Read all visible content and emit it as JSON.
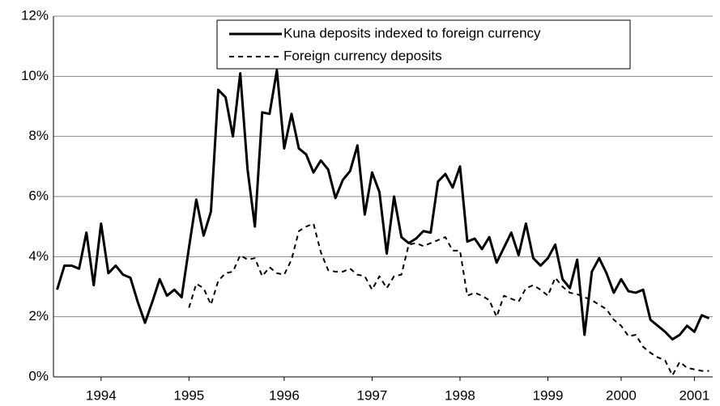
{
  "chart_data": {
    "type": "line",
    "categories": [
      null,
      null,
      null,
      null,
      null,
      null,
      "1994",
      null,
      null,
      null,
      null,
      null,
      null,
      null,
      null,
      null,
      null,
      null,
      "1995",
      null,
      null,
      null,
      null,
      null,
      null,
      null,
      null,
      null,
      null,
      null,
      null,
      "1996",
      null,
      null,
      null,
      null,
      null,
      null,
      null,
      null,
      null,
      null,
      null,
      "1997",
      null,
      null,
      null,
      null,
      null,
      null,
      null,
      null,
      null,
      null,
      null,
      "1998",
      null,
      null,
      null,
      null,
      null,
      null,
      null,
      null,
      null,
      null,
      null,
      "1999",
      null,
      null,
      null,
      null,
      null,
      null,
      null,
      null,
      null,
      "2000",
      null,
      null,
      null,
      null,
      null,
      null,
      null,
      null,
      null,
      "2001",
      null,
      null
    ],
    "series": [
      {
        "name": "Kuna deposits indexed to foreign currency",
        "color": "#000000",
        "linestyle": "solid",
        "values": [
          2.9,
          3.7,
          3.7,
          3.6,
          4.8,
          3.05,
          5.1,
          3.45,
          3.7,
          3.4,
          3.3,
          2.5,
          1.8,
          2.5,
          3.25,
          2.7,
          2.9,
          2.65,
          4.3,
          5.9,
          4.7,
          5.5,
          9.55,
          9.3,
          8.0,
          10.1,
          6.9,
          5.0,
          8.8,
          8.75,
          10.2,
          7.6,
          8.75,
          7.6,
          7.4,
          6.8,
          7.2,
          6.9,
          5.95,
          6.55,
          6.85,
          7.7,
          5.4,
          6.8,
          6.15,
          4.1,
          6.0,
          4.65,
          4.45,
          4.6,
          4.85,
          4.8,
          6.5,
          6.75,
          6.3,
          7.0,
          4.5,
          4.6,
          4.25,
          4.65,
          3.8,
          4.3,
          4.8,
          4.05,
          5.1,
          3.95,
          3.7,
          3.95,
          4.4,
          3.25,
          2.95,
          3.9,
          1.4,
          3.5,
          3.95,
          3.45,
          2.8,
          3.25,
          2.85,
          2.8,
          2.9,
          1.9,
          1.7,
          1.5,
          1.25,
          1.4,
          1.7,
          1.5,
          2.05,
          1.95
        ]
      },
      {
        "name": "Foreign currency deposits",
        "color": "#000000",
        "linestyle": "dashed",
        "values": [
          null,
          null,
          null,
          null,
          null,
          null,
          null,
          null,
          null,
          null,
          null,
          null,
          null,
          null,
          null,
          null,
          null,
          null,
          2.3,
          3.1,
          2.95,
          2.4,
          3.2,
          3.45,
          3.5,
          4.05,
          3.9,
          3.95,
          3.35,
          3.65,
          3.45,
          3.4,
          3.9,
          4.85,
          5.0,
          5.1,
          4.15,
          3.55,
          3.5,
          3.5,
          3.6,
          3.4,
          3.35,
          2.9,
          3.35,
          2.95,
          3.35,
          3.4,
          4.4,
          4.45,
          4.35,
          4.45,
          4.55,
          4.65,
          4.2,
          4.2,
          2.7,
          2.8,
          2.7,
          2.55,
          2.0,
          2.7,
          2.6,
          2.5,
          2.95,
          3.05,
          2.9,
          2.7,
          3.3,
          3.0,
          2.8,
          2.75,
          2.65,
          2.55,
          2.4,
          2.25,
          1.9,
          1.7,
          1.35,
          1.4,
          1.0,
          0.8,
          0.65,
          0.55,
          0.05,
          0.5,
          0.3,
          0.25,
          0.2,
          0.2
        ]
      }
    ],
    "ylim": [
      0,
      12
    ],
    "yticks": [
      {
        "value": 0,
        "label": "0%"
      },
      {
        "value": 2,
        "label": "2%"
      },
      {
        "value": 4,
        "label": "4%"
      },
      {
        "value": 6,
        "label": "6%"
      },
      {
        "value": 8,
        "label": "8%"
      },
      {
        "value": 10,
        "label": "10%"
      },
      {
        "value": 12,
        "label": "12%"
      }
    ],
    "grid": true,
    "legend": "upper center"
  }
}
